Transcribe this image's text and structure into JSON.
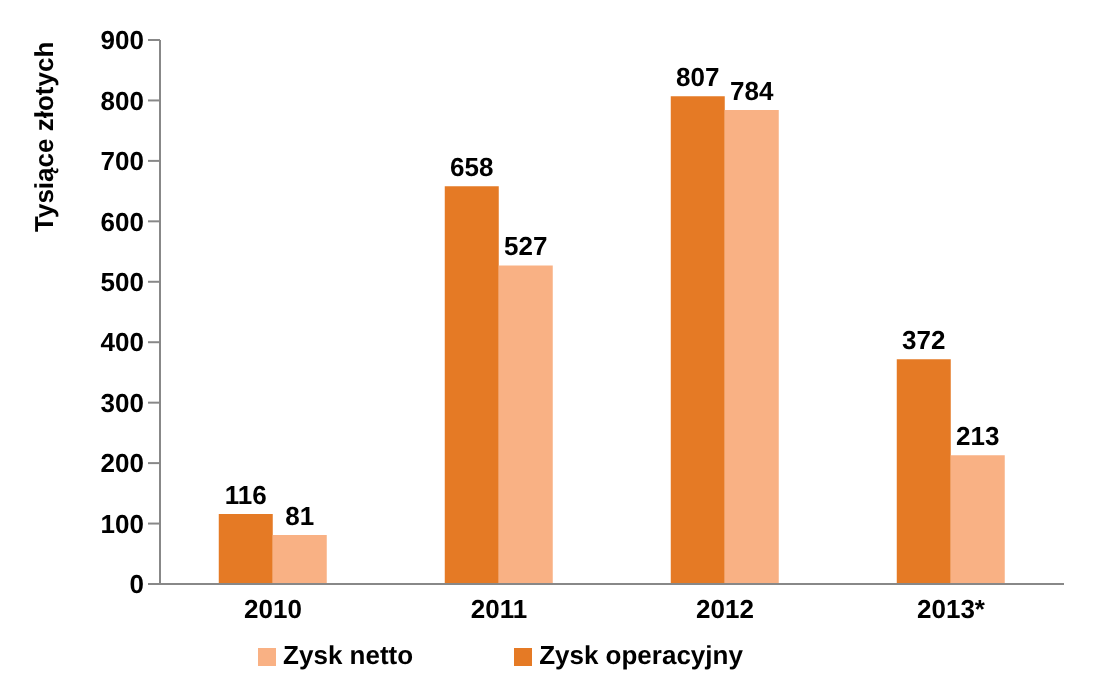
{
  "chart_data": {
    "type": "bar",
    "ylabel": "Tysiące złotych",
    "categories": [
      "2010",
      "2011",
      "2012",
      "2013*"
    ],
    "series": [
      {
        "name": "Zysk operacyjny",
        "color": "#e57a25",
        "values": [
          116,
          658,
          807,
          372
        ]
      },
      {
        "name": "Zysk netto",
        "color": "#f9b184",
        "values": [
          81,
          527,
          784,
          213
        ]
      }
    ],
    "ylim": [
      0,
      900
    ],
    "yticks": [
      0,
      100,
      200,
      300,
      400,
      500,
      600,
      700,
      800,
      900
    ],
    "grid": false,
    "legend": "bottom",
    "data_labels": true
  }
}
